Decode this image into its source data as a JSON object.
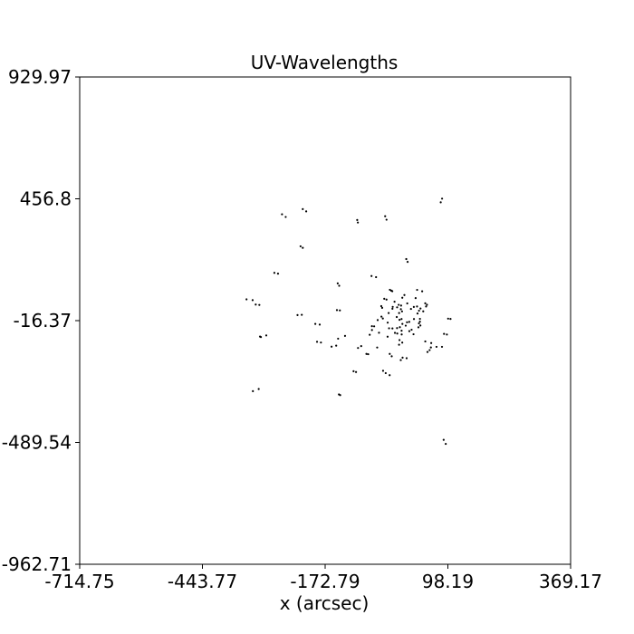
{
  "chart_data": {
    "type": "scatter",
    "title": "UV-Wavelengths",
    "xlabel": "x (arcsec)",
    "ylabel": "",
    "xlim": [
      -714.75,
      369.17
    ],
    "ylim": [
      -962.71,
      929.97
    ],
    "x_ticks": [
      -714.75,
      -443.77,
      -172.79,
      98.19,
      369.17
    ],
    "x_tick_labels": [
      "-714.75",
      "-443.77",
      "-172.79",
      "98.19",
      "369.17"
    ],
    "y_ticks": [
      929.97,
      456.8,
      -16.37,
      -489.54,
      -962.71
    ],
    "y_tick_labels": [
      "929.97",
      "456.8",
      "-16.37",
      "-489.54",
      "-962.71"
    ],
    "grid": false,
    "marker_color": "#000000",
    "points": [
      [
        85.4,
        457.5
      ],
      [
        82.4,
        443.2
      ],
      [
        -40.3,
        389.0
      ],
      [
        -37.3,
        375.7
      ],
      [
        -100.6,
        364.7
      ],
      [
        -102.0,
        374.6
      ],
      [
        -222.2,
        416.7
      ],
      [
        -214.6,
        408.1
      ],
      [
        -268.0,
        396.7
      ],
      [
        -259.9,
        386.3
      ],
      [
        -227.1,
        272.4
      ],
      [
        -222.2,
        266.5
      ],
      [
        6.3,
        222.9
      ],
      [
        9.3,
        211.9
      ],
      [
        -284.9,
        169.1
      ],
      [
        -276.9,
        166.2
      ],
      [
        -70.4,
        156.9
      ],
      [
        -60.4,
        152.5
      ],
      [
        -145.1,
        128.2
      ],
      [
        -141.8,
        119.1
      ],
      [
        -346.4,
        66.2
      ],
      [
        -332.9,
        63.3
      ],
      [
        -146.8,
        24.4
      ],
      [
        -140.3,
        23.4
      ],
      [
        -233.8,
        5.3
      ],
      [
        -224.4,
        6.2
      ],
      [
        -194.5,
        -29.2
      ],
      [
        -184.8,
        -31.8
      ],
      [
        -128.9,
        -75.7
      ],
      [
        -144.2,
        -86.5
      ],
      [
        -190.7,
        -98.7
      ],
      [
        -182.1,
        -101.4
      ],
      [
        -158.6,
        -117.4
      ],
      [
        -100.2,
        -122.5
      ],
      [
        -93.2,
        -115.2
      ],
      [
        -57.9,
        -120.8
      ],
      [
        -30.2,
        -145.6
      ],
      [
        -25.8,
        -155.0
      ],
      [
        -81.7,
        -145.6
      ],
      [
        -77.8,
        -146.8
      ],
      [
        53.2,
        -138.3
      ],
      [
        57.9,
        -130.9
      ],
      [
        -1.8,
        -160.3
      ],
      [
        7.1,
        -162.4
      ],
      [
        -5.8,
        -169.7
      ],
      [
        -110.1,
        -212.9
      ],
      [
        -104.6,
        -216.0
      ],
      [
        -44.9,
        -211.1
      ],
      [
        -39.1,
        -220.2
      ],
      [
        -30.4,
        -228.3
      ],
      [
        -142.4,
        -303.1
      ],
      [
        -139.6,
        -305.8
      ],
      [
        -332.3,
        -290.2
      ],
      [
        -319.5,
        -282.1
      ],
      [
        -316.6,
        -78.4
      ],
      [
        -302.8,
        -73.8
      ],
      [
        -314.7,
        -80.1
      ],
      [
        -318.1,
        44.6
      ],
      [
        -326.1,
        46.1
      ],
      [
        -148.4,
        -113.6
      ],
      [
        88.9,
        -479.5
      ],
      [
        93.5,
        -495.1
      ],
      [
        98.7,
        -8.6
      ],
      [
        104.0,
        -9.8
      ],
      [
        89.7,
        -67.8
      ],
      [
        96.0,
        -70.3
      ],
      [
        61.4,
        -103.5
      ],
      [
        73.1,
        -118.1
      ],
      [
        85.2,
        -118.1
      ],
      [
        60.7,
        -120.5
      ],
      [
        -9.5,
        13.2
      ],
      [
        -3.0,
        19.5
      ],
      [
        50.1,
        38.5
      ],
      [
        52.0,
        45.4
      ],
      [
        48.2,
        51.0
      ],
      [
        30.1,
        38.7
      ],
      [
        37.7,
        30.6
      ],
      [
        34.5,
        22.2
      ],
      [
        43.8,
        19.7
      ],
      [
        -23.6,
        37.1
      ],
      [
        -24.2,
        29.9
      ],
      [
        -46.9,
        33.2
      ],
      [
        -48.9,
        40.0
      ],
      [
        -37.3,
        65.5
      ],
      [
        -42.3,
        68.6
      ],
      [
        -2.4,
        72.4
      ],
      [
        2.2,
        83.0
      ],
      [
        41.4,
        97.6
      ],
      [
        -26.9,
        100.3
      ],
      [
        -24.5,
        98.0
      ],
      [
        -48.5,
        -0.8
      ],
      [
        -45.4,
        -8.0
      ],
      [
        -14.7,
        -2.2
      ],
      [
        -8.6,
        -13.2
      ],
      [
        -2.2,
        -29.0
      ],
      [
        -7.8,
        -41.8
      ],
      [
        -14.0,
        -45.3
      ],
      [
        -31.7,
        -46.1
      ],
      [
        -24.2,
        -46.6
      ],
      [
        -64.6,
        -38.5
      ],
      [
        -69.5,
        -38.0
      ],
      [
        -69.4,
        -52.8
      ],
      [
        23.3,
        -10.2
      ],
      [
        36.5,
        -9.5
      ],
      [
        36.4,
        -20.3
      ],
      [
        34.3,
        -27.1
      ],
      [
        37.5,
        -35.2
      ],
      [
        33.2,
        -42.2
      ],
      [
        18.1,
        -51.7
      ],
      [
        13.1,
        -57.2
      ],
      [
        -18.7,
        -63.9
      ],
      [
        -13.6,
        -66.4
      ],
      [
        -3.8,
        -69.9
      ],
      [
        -10.4,
        45.0
      ],
      [
        8.5,
        50.5
      ],
      [
        8.0,
        -22.8
      ],
      [
        5.1,
        -35.9
      ],
      [
        -4.1,
        -10.0
      ],
      [
        -4.0,
        -55.6
      ],
      [
        -19.6,
        57.2
      ],
      [
        -5.1,
        42.2
      ],
      [
        -13.9,
        35.3
      ],
      [
        -32.6,
        13.2
      ],
      [
        -34.7,
        -24.1
      ],
      [
        -56.8,
        -14.1
      ],
      [
        23.0,
        36.8
      ],
      [
        16.7,
        29.1
      ],
      [
        22.3,
        -69.3
      ],
      [
        -8.6,
        -91.8
      ],
      [
        -5.6,
        28.0
      ],
      [
        31.2,
        11.4
      ],
      [
        -53.9,
        -63.4
      ],
      [
        48.3,
        -97.1
      ],
      [
        -9.6,
        -110.1
      ],
      [
        -74.4,
        -71.2
      ],
      [
        27.0,
        71.2
      ],
      [
        12.9,
        -21.1
      ],
      [
        30.3,
        103.1
      ],
      [
        -34.9,
        -78.7
      ],
      [
        -2.5,
        -101.6
      ],
      [
        -29.9,
        103.5
      ]
    ]
  }
}
